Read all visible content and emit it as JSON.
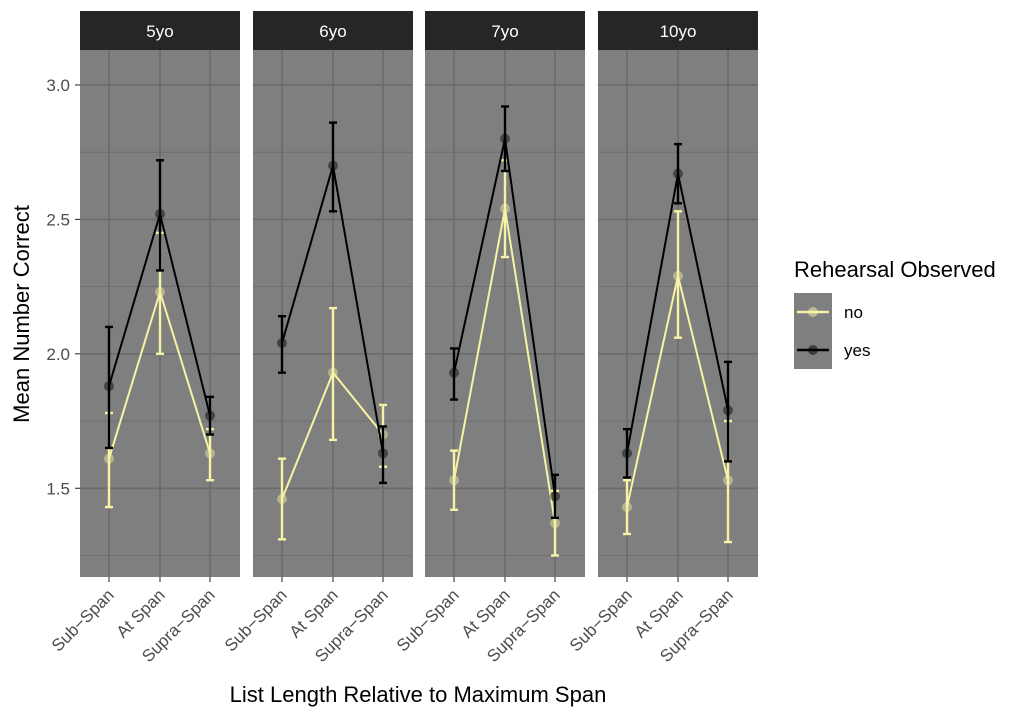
{
  "chart_data": {
    "type": "line",
    "xlabel": "List Length Relative to Maximum Span",
    "ylabel": "Mean Number Correct",
    "ylim": [
      1.17,
      3.13
    ],
    "yticks": [
      1.5,
      2.0,
      2.5,
      3.0
    ],
    "ytick_labels": [
      "1.5",
      "2.0",
      "2.5",
      "3.0"
    ],
    "categories": [
      "Sub−Span",
      "At Span",
      "Supra−Span"
    ],
    "grid": true,
    "legend": {
      "title": "Rehearsal Observed",
      "position": "right",
      "entries": [
        "no",
        "yes"
      ]
    },
    "colors": {
      "no": "#f7f3a4",
      "yes": "#000000",
      "panel_bg": "#7f7f7f",
      "strip_bg": "#262626",
      "grid": "#6b6b6b"
    },
    "panels": [
      {
        "label": "5yo",
        "series": [
          {
            "name": "no",
            "values": [
              1.61,
              2.23,
              1.63
            ],
            "lower": [
              1.43,
              2.0,
              1.53
            ],
            "upper": [
              1.78,
              2.45,
              1.72
            ]
          },
          {
            "name": "yes",
            "values": [
              1.88,
              2.52,
              1.77
            ],
            "lower": [
              1.65,
              2.31,
              1.7
            ],
            "upper": [
              2.1,
              2.72,
              1.84
            ]
          }
        ]
      },
      {
        "label": "6yo",
        "series": [
          {
            "name": "no",
            "values": [
              1.46,
              1.93,
              1.7
            ],
            "lower": [
              1.31,
              1.68,
              1.58
            ],
            "upper": [
              1.61,
              2.17,
              1.81
            ]
          },
          {
            "name": "yes",
            "values": [
              2.04,
              2.7,
              1.63
            ],
            "lower": [
              1.93,
              2.53,
              1.52
            ],
            "upper": [
              2.14,
              2.86,
              1.73
            ]
          }
        ]
      },
      {
        "label": "7yo",
        "series": [
          {
            "name": "no",
            "values": [
              1.53,
              2.54,
              1.37
            ],
            "lower": [
              1.42,
              2.36,
              1.25
            ],
            "upper": [
              1.64,
              2.72,
              1.49
            ]
          },
          {
            "name": "yes",
            "values": [
              1.93,
              2.8,
              1.47
            ],
            "lower": [
              1.83,
              2.68,
              1.39
            ],
            "upper": [
              2.02,
              2.92,
              1.55
            ]
          }
        ]
      },
      {
        "label": "10yo",
        "series": [
          {
            "name": "no",
            "values": [
              1.43,
              2.29,
              1.53
            ],
            "lower": [
              1.33,
              2.06,
              1.3
            ],
            "upper": [
              1.53,
              2.53,
              1.75
            ]
          },
          {
            "name": "yes",
            "values": [
              1.63,
              2.67,
              1.79
            ],
            "lower": [
              1.54,
              2.56,
              1.6
            ],
            "upper": [
              1.72,
              2.78,
              1.97
            ]
          }
        ]
      }
    ]
  }
}
